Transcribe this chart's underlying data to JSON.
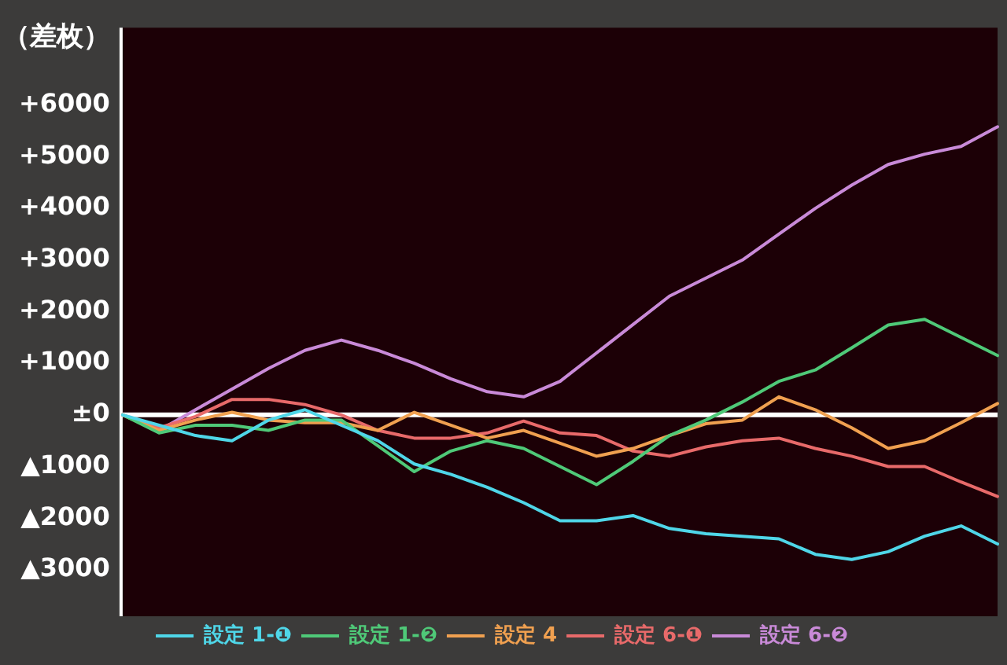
{
  "chart_data": {
    "type": "line",
    "ylabel": "（差枚）",
    "categories": [
      null,
      null,
      null,
      null,
      null,
      null,
      null,
      null,
      null,
      null,
      null,
      null,
      null,
      null,
      null,
      null,
      null,
      null,
      null,
      null,
      null,
      null,
      null,
      null,
      null
    ],
    "series": [
      {
        "name": "設定 1-❶",
        "color": "#4fd6e8",
        "values": [
          0,
          -200,
          -400,
          -500,
          -100,
          100,
          -200,
          -500,
          -950,
          -1150,
          -1400,
          -1700,
          -2050,
          -2050,
          -1950,
          -2200,
          -2300,
          -2350,
          -2400,
          -2700,
          -2800,
          -2650,
          -2350,
          -2150,
          -2500
        ]
      },
      {
        "name": "設定 1-❷",
        "color": "#4fc978",
        "values": [
          0,
          -350,
          -200,
          -200,
          -300,
          -100,
          -100,
          -600,
          -1100,
          -700,
          -500,
          -650,
          -1000,
          -1350,
          -900,
          -400,
          -100,
          250,
          650,
          870,
          1300,
          1740,
          1850,
          1500,
          1150
        ]
      },
      {
        "name": "設定 4",
        "color": "#f0a050",
        "values": [
          0,
          -300,
          -100,
          50,
          -100,
          -150,
          -150,
          -300,
          50,
          -200,
          -450,
          -300,
          -550,
          -800,
          -650,
          -400,
          -170,
          -100,
          350,
          100,
          -250,
          -650,
          -500,
          -150,
          220
        ]
      },
      {
        "name": "設定 6-❶",
        "color": "#e86a6a",
        "values": [
          0,
          -250,
          -30,
          300,
          300,
          200,
          0,
          -300,
          -450,
          -450,
          -350,
          -120,
          -350,
          -400,
          -700,
          -800,
          -620,
          -500,
          -450,
          -650,
          -800,
          -1000,
          -1000,
          -1300,
          -1580
        ]
      },
      {
        "name": "設定 6-❷",
        "color": "#c98ad8",
        "values": [
          0,
          -300,
          100,
          500,
          900,
          1250,
          1450,
          1250,
          1000,
          700,
          450,
          350,
          650,
          1200,
          1750,
          2300,
          2650,
          3000,
          3500,
          4000,
          4450,
          4850,
          5050,
          5200,
          5580
        ]
      }
    ],
    "ylim": [
      -3900,
      7500
    ],
    "yticks": [
      {
        "value": 6000,
        "label": "+6000"
      },
      {
        "value": 5000,
        "label": "+5000"
      },
      {
        "value": 4000,
        "label": "+4000"
      },
      {
        "value": 3000,
        "label": "+3000"
      },
      {
        "value": 2000,
        "label": "+2000"
      },
      {
        "value": 1000,
        "label": "+1000"
      },
      {
        "value": 0,
        "label": "±0"
      },
      {
        "value": -1000,
        "label": "▲1000"
      },
      {
        "value": -2000,
        "label": "▲2000"
      },
      {
        "value": -3000,
        "label": "▲3000"
      }
    ],
    "tick_labels": "y",
    "legend": "bottom",
    "marker": "none",
    "line_style": "solid",
    "ref_lines": [
      {
        "axis": "y",
        "value": 0,
        "color": "#ffffff"
      }
    ]
  }
}
